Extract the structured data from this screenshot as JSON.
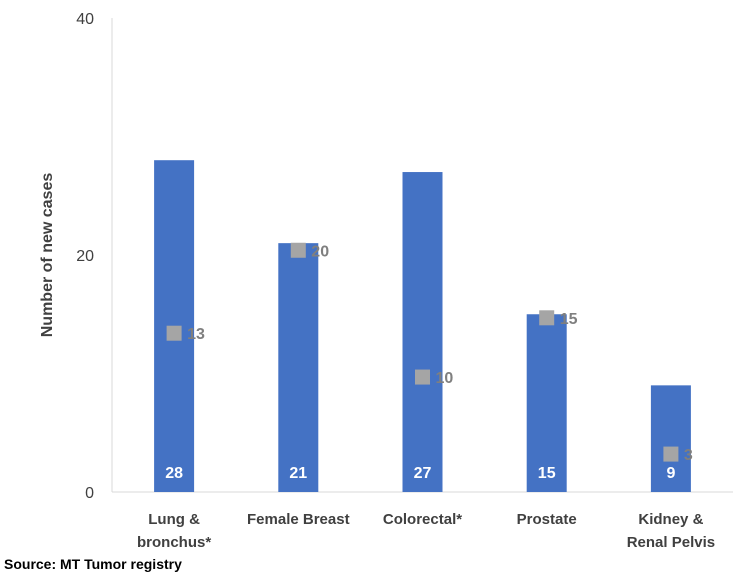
{
  "chart_data": {
    "type": "bar",
    "categories": [
      [
        "Lung &",
        "bronchus*"
      ],
      [
        "Female Breast"
      ],
      [
        "Colorectal*"
      ],
      [
        "Prostate"
      ],
      [
        "Kidney &",
        "Renal Pelvis"
      ]
    ],
    "series": [
      {
        "type": "bar",
        "values": [
          28,
          21,
          27,
          15,
          9
        ],
        "labels": [
          "28",
          "21",
          "27",
          "15",
          "9"
        ],
        "color": "#4472C4"
      },
      {
        "type": "scatter",
        "values": [
          13.4,
          20.4,
          9.7,
          14.7,
          3.2
        ],
        "labels": [
          "13",
          "20",
          "10",
          "15",
          "3"
        ],
        "color": "#A5A5A5"
      }
    ],
    "ylabel": "Number of new cases",
    "xlabel": "",
    "ylim": [
      0,
      40
    ],
    "yticks": [
      "0",
      "20",
      "40"
    ],
    "grid": false,
    "axis_color": "#D9D9D9"
  },
  "footer": {
    "source": "Source: MT Tumor registry"
  }
}
